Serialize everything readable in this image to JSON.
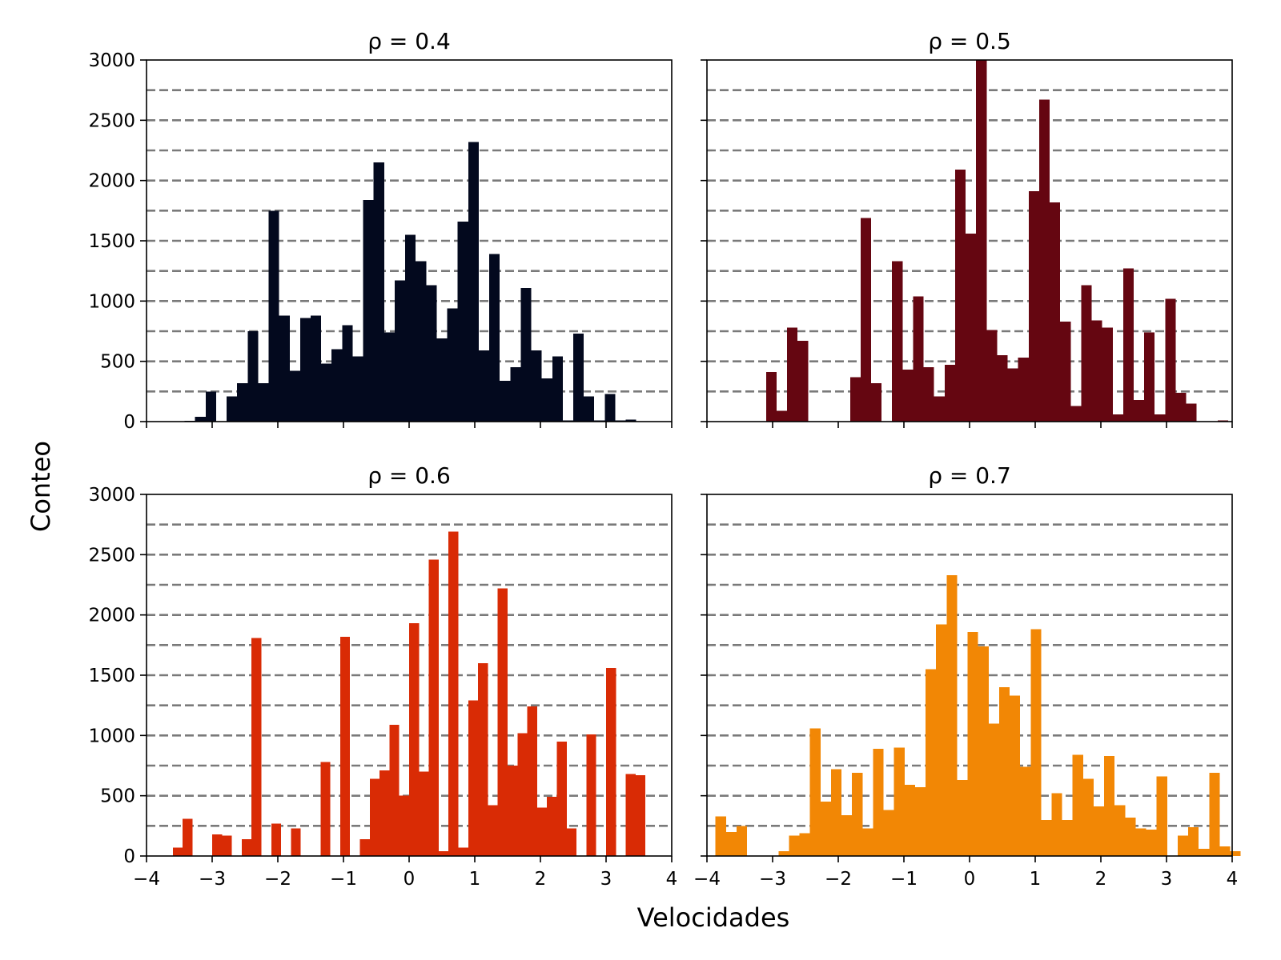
{
  "figure": {
    "xlabel": "Velocidades",
    "ylabel": "Conteo"
  },
  "chart_data": [
    {
      "type": "bar",
      "title": "ρ = 0.4",
      "color": "#03091e",
      "bin_width": 0.16,
      "bin_start": -3.9,
      "values": [
        0,
        4,
        4,
        5,
        40,
        250,
        0,
        210,
        320,
        750,
        320,
        1750,
        880,
        420,
        860,
        880,
        480,
        600,
        800,
        540,
        1840,
        2150,
        740,
        1170,
        1550,
        1330,
        1130,
        690,
        940,
        1660,
        2320,
        590,
        1390,
        340,
        450,
        1110,
        590,
        360,
        540,
        10,
        730,
        210,
        10,
        230,
        10,
        15,
        0
      ],
      "xlim": [
        -4,
        4
      ],
      "ylim": [
        0,
        3000
      ],
      "xticks": [
        -4,
        -3,
        -2,
        -1,
        0,
        1,
        2,
        3,
        4
      ],
      "yticks": [
        0,
        500,
        1000,
        1500,
        2000,
        2500,
        3000
      ],
      "grid": "horizontal dashed every 250"
    },
    {
      "type": "bar",
      "title": "ρ = 0.5",
      "color": "#650611",
      "bin_width": 0.16,
      "bin_start": -3.9,
      "values": [
        0,
        0,
        0,
        0,
        0,
        410,
        90,
        780,
        670,
        0,
        0,
        0,
        0,
        370,
        1690,
        320,
        0,
        1330,
        430,
        1040,
        450,
        210,
        470,
        2090,
        1560,
        3000,
        760,
        550,
        440,
        530,
        1910,
        2670,
        1820,
        830,
        130,
        1130,
        840,
        780,
        60,
        1270,
        180,
        740,
        60,
        1020,
        240,
        150,
        0,
        0,
        10,
        0,
        0
      ],
      "xlim": [
        -4,
        4
      ],
      "ylim": [
        0,
        3000
      ],
      "xticks": [
        -4,
        -3,
        -2,
        -1,
        0,
        1,
        2,
        3,
        4
      ],
      "yticks": [
        0,
        500,
        1000,
        1500,
        2000,
        2500,
        3000
      ],
      "grid": "horizontal dashed every 250"
    },
    {
      "type": "bar",
      "title": "ρ = 0.6",
      "color": "#d92b05",
      "bin_width": 0.15,
      "bin_start": -3.9,
      "values": [
        0,
        0,
        70,
        310,
        0,
        0,
        180,
        170,
        0,
        140,
        1810,
        0,
        270,
        0,
        230,
        0,
        0,
        780,
        0,
        1820,
        0,
        140,
        640,
        710,
        1090,
        500,
        1930,
        700,
        2460,
        40,
        2690,
        70,
        1290,
        1600,
        420,
        2220,
        750,
        1020,
        1240,
        400,
        490,
        950,
        230,
        0,
        1010,
        0,
        1560,
        0,
        680,
        670
      ],
      "xlim": [
        -4,
        4
      ],
      "ylim": [
        0,
        3000
      ],
      "xticks": [
        -4,
        -3,
        -2,
        -1,
        0,
        1,
        2,
        3,
        4
      ],
      "yticks": [
        0,
        500,
        1000,
        1500,
        2000,
        2500,
        3000
      ],
      "grid": "horizontal dashed every 250"
    },
    {
      "type": "bar",
      "title": "ρ = 0.7",
      "color": "#f28705",
      "bin_width": 0.16,
      "bin_start": -3.87,
      "values": [
        330,
        200,
        250,
        0,
        0,
        0,
        40,
        170,
        190,
        1060,
        450,
        720,
        340,
        690,
        230,
        890,
        380,
        900,
        590,
        570,
        1550,
        1920,
        2330,
        630,
        1860,
        1740,
        1100,
        1400,
        1330,
        740,
        1880,
        300,
        520,
        300,
        840,
        640,
        410,
        830,
        420,
        320,
        230,
        220,
        660,
        0,
        170,
        240,
        60,
        690,
        80,
        40,
        0
      ],
      "xlim": [
        -4,
        4
      ],
      "ylim": [
        0,
        3000
      ],
      "xticks": [
        -4,
        -3,
        -2,
        -1,
        0,
        1,
        2,
        3,
        4
      ],
      "yticks": [
        0,
        500,
        1000,
        1500,
        2000,
        2500,
        3000
      ],
      "grid": "horizontal dashed every 250"
    }
  ]
}
